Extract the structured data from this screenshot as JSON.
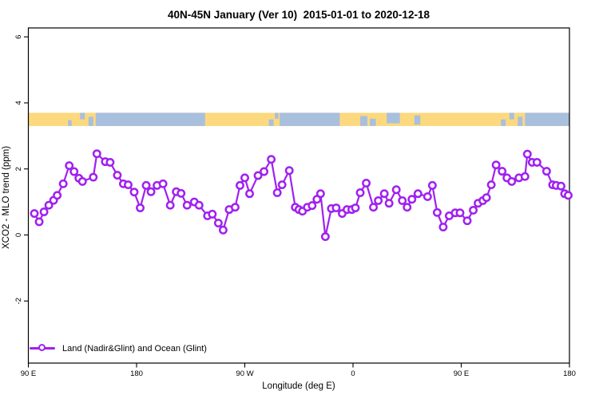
{
  "chart_data": {
    "type": "line",
    "title": "40N-45N January (Ver 10)  2015-01-01 to 2020-12-18",
    "xlabel": "Longitude (deg E)",
    "ylabel": "XCO2 - MLO trend (ppm)",
    "xlim": [
      90,
      540
    ],
    "ylim": [
      -3.88,
      6.27
    ],
    "grid": false,
    "x_ticks": [
      {
        "pos": 90,
        "label": "90 E"
      },
      {
        "pos": 180,
        "label": "180"
      },
      {
        "pos": 270,
        "label": "90 W"
      },
      {
        "pos": 360,
        "label": "0"
      },
      {
        "pos": 450,
        "label": "90 E"
      },
      {
        "pos": 540,
        "label": "180"
      }
    ],
    "y_ticks": [
      -2,
      0,
      2,
      4,
      6
    ],
    "series": [
      {
        "name": "Land (Nadir&Glint) and Ocean (Glint)",
        "color": "#A020F0",
        "marker": "open-circle",
        "points": [
          [
            95,
            0.65
          ],
          [
            99,
            0.4
          ],
          [
            103,
            0.7
          ],
          [
            107,
            0.9
          ],
          [
            111,
            1.05
          ],
          [
            114,
            1.2
          ],
          [
            119,
            1.55
          ],
          [
            124,
            2.1
          ],
          [
            128,
            1.92
          ],
          [
            132,
            1.72
          ],
          [
            135,
            1.62
          ],
          [
            144,
            1.75
          ],
          [
            147,
            2.46
          ],
          [
            154,
            2.22
          ],
          [
            158,
            2.2
          ],
          [
            164,
            1.81
          ],
          [
            169,
            1.55
          ],
          [
            173,
            1.52
          ],
          [
            178,
            1.3
          ],
          [
            183,
            0.82
          ],
          [
            188,
            1.5
          ],
          [
            192,
            1.31
          ],
          [
            197,
            1.5
          ],
          [
            202,
            1.55
          ],
          [
            208,
            0.9
          ],
          [
            213,
            1.31
          ],
          [
            217,
            1.26
          ],
          [
            222,
            0.9
          ],
          [
            228,
            1.0
          ],
          [
            232,
            0.9
          ],
          [
            239,
            0.58
          ],
          [
            243,
            0.63
          ],
          [
            248,
            0.36
          ],
          [
            252,
            0.15
          ],
          [
            257,
            0.77
          ],
          [
            262,
            0.84
          ],
          [
            266,
            1.5
          ],
          [
            270,
            1.73
          ],
          [
            274,
            1.25
          ],
          [
            281,
            1.8
          ],
          [
            286,
            1.92
          ],
          [
            292,
            2.29
          ],
          [
            297,
            1.28
          ],
          [
            301,
            1.52
          ],
          [
            307,
            1.95
          ],
          [
            312,
            0.84
          ],
          [
            315,
            0.77
          ],
          [
            318,
            0.72
          ],
          [
            322,
            0.84
          ],
          [
            326,
            0.89
          ],
          [
            330,
            1.08
          ],
          [
            333,
            1.25
          ],
          [
            337,
            -0.05
          ],
          [
            342,
            0.8
          ],
          [
            346,
            0.82
          ],
          [
            351,
            0.65
          ],
          [
            355,
            0.77
          ],
          [
            359,
            0.77
          ],
          [
            362,
            0.82
          ],
          [
            366,
            1.28
          ],
          [
            371,
            1.57
          ],
          [
            377,
            0.84
          ],
          [
            381,
            1.04
          ],
          [
            386,
            1.25
          ],
          [
            390,
            0.96
          ],
          [
            396,
            1.37
          ],
          [
            401,
            1.04
          ],
          [
            405,
            0.84
          ],
          [
            409,
            1.08
          ],
          [
            414,
            1.25
          ],
          [
            422,
            1.16
          ],
          [
            426,
            1.5
          ],
          [
            430,
            0.68
          ],
          [
            435,
            0.24
          ],
          [
            440,
            0.58
          ],
          [
            445,
            0.67
          ],
          [
            449,
            0.67
          ],
          [
            455,
            0.43
          ],
          [
            460,
            0.75
          ],
          [
            464,
            0.96
          ],
          [
            468,
            1.04
          ],
          [
            471,
            1.13
          ],
          [
            475,
            1.52
          ],
          [
            479,
            2.12
          ],
          [
            484,
            1.93
          ],
          [
            488,
            1.73
          ],
          [
            492,
            1.62
          ],
          [
            498,
            1.73
          ],
          [
            503,
            1.77
          ],
          [
            505,
            2.45
          ],
          [
            509,
            2.2
          ],
          [
            513,
            2.2
          ],
          [
            521,
            1.93
          ],
          [
            526,
            1.52
          ],
          [
            529,
            1.5
          ],
          [
            533,
            1.48
          ],
          [
            536,
            1.25
          ],
          [
            539,
            1.2
          ]
        ]
      }
    ],
    "map_band": {
      "description": "land/ocean strip for 40N-45N latitude band",
      "y_range": [
        3.3,
        3.7
      ],
      "land_color": "#FCD97E",
      "ocean_color": "#A9BFDE",
      "ocean_segments": [
        [
          146,
          237
        ],
        [
          299,
          349
        ],
        [
          503,
          540
        ]
      ],
      "ocean_patches": [
        [
          123,
          126,
          0.55,
          1
        ],
        [
          133,
          137,
          0.0,
          0.5
        ],
        [
          140,
          144,
          0.3,
          1
        ],
        [
          290,
          294,
          0.5,
          1
        ],
        [
          295,
          298,
          0.0,
          0.45
        ],
        [
          366,
          372,
          0.25,
          1
        ],
        [
          374,
          379,
          0.45,
          1
        ],
        [
          388,
          399,
          0.0,
          0.8
        ],
        [
          411,
          416,
          0.2,
          0.9
        ],
        [
          483,
          487,
          0.5,
          1
        ],
        [
          490,
          494,
          0.0,
          0.5
        ],
        [
          497,
          501,
          0.3,
          1
        ]
      ]
    },
    "legend": {
      "position": "bottom-left"
    }
  }
}
